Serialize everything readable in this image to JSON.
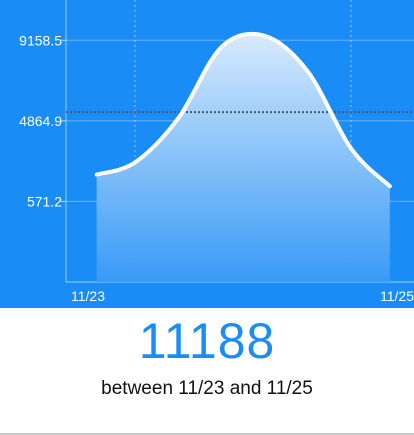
{
  "colors": {
    "panel_bg": "#1a8cf5",
    "accent": "#1a8cf5",
    "curve": "#ffffff",
    "mean_line": "#4a5a6a"
  },
  "chart_data": {
    "type": "area",
    "x_tick_labels": [
      "11/23",
      "11/25"
    ],
    "y_tick_labels": [
      "9158.5",
      "4864.9",
      "571.2"
    ],
    "y_ticks": [
      9158.5,
      4864.9,
      571.2
    ],
    "ylim": [
      -3722.5,
      11305.3
    ],
    "x": [
      -0.355,
      0.0,
      0.4,
      0.8,
      1.2,
      1.6,
      2.0,
      2.36
    ],
    "values": [
      2000,
      2650,
      5000,
      8800,
      9400,
      7500,
      3400,
      1380
    ],
    "mean_line": 5330,
    "grid": true,
    "title": "",
    "xlabel": "",
    "ylabel": ""
  },
  "summary": {
    "total": "11188",
    "range_text": "between 11/23 and 11/25"
  }
}
